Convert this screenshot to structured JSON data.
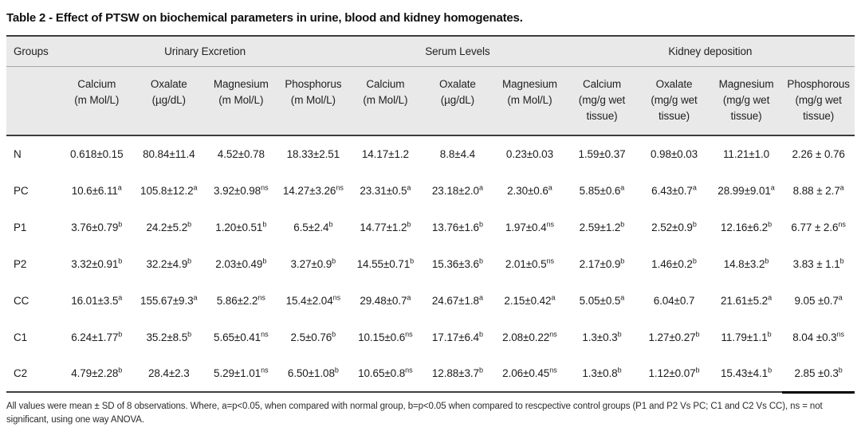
{
  "title": "Table 2 - Effect of PTSW on biochemical parameters in urine, blood and kidney homogenates.",
  "table": {
    "group_header": {
      "groups_label": "Groups",
      "spans": [
        {
          "label": "Urinary Excretion",
          "cols": 4
        },
        {
          "label": "Serum Levels",
          "cols": 3
        },
        {
          "label": "Kidney deposition",
          "cols": 4
        }
      ]
    },
    "columns": [
      {
        "name": "Calcium",
        "unit": "(m Mol/L)"
      },
      {
        "name": "Oxalate",
        "unit": "(µg/dL)"
      },
      {
        "name": "Magnesium",
        "unit": "(m Mol/L)"
      },
      {
        "name": "Phosphorus",
        "unit": "(m Mol/L)"
      },
      {
        "name": "Calcium",
        "unit": "(m Mol/L)"
      },
      {
        "name": "Oxalate",
        "unit": "(µg/dL)"
      },
      {
        "name": "Magnesium",
        "unit": "(m Mol/L)"
      },
      {
        "name": "Calcium",
        "unit": "(mg/g wet tissue)"
      },
      {
        "name": "Oxalate",
        "unit": "(mg/g wet tissue)"
      },
      {
        "name": "Magnesium",
        "unit": "(mg/g wet tissue)"
      },
      {
        "name": "Phosphorous",
        "unit": "(mg/g wet tissue)"
      }
    ],
    "rows": [
      {
        "group": "N",
        "values": [
          "0.618±0.15",
          "80.84±11.4",
          "4.52±0.78",
          "18.33±2.51",
          "14.17±1.2",
          "8.8±4.4",
          "0.23±0.03",
          "1.59±0.37",
          "0.98±0.03",
          "11.21±1.0",
          "2.26 ± 0.76"
        ]
      },
      {
        "group": "PC",
        "values": [
          "10.6±6.11^a",
          "105.8±12.2^a",
          "3.92±0.98^ns",
          "14.27±3.26^ns",
          "23.31±0.5^a",
          "23.18±2.0^a",
          "2.30±0.6^a",
          "5.85±0.6^a",
          "6.43±0.7^a",
          "28.99±9.01^a",
          "8.88 ± 2.7^a"
        ]
      },
      {
        "group": "P1",
        "values": [
          "3.76±0.79^b",
          "24.2±5.2^b",
          "1.20±0.51^b",
          "6.5±2.4^b",
          "14.77±1.2^b",
          "13.76±1.6^b",
          "1.97±0.4^ns",
          "2.59±1.2^b",
          "2.52±0.9^b",
          "12.16±6.2^b",
          "6.77 ± 2.6^ns"
        ]
      },
      {
        "group": "P2",
        "values": [
          "3.32±0.91^b",
          "32.2±4.9^b",
          "2.03±0.49^b",
          "3.27±0.9^b",
          "14.55±0.71^b",
          "15.36±3.6^b",
          "2.01±0.5^ns",
          "2.17±0.9^b",
          "1.46±0.2^b",
          "14.8±3.2^b",
          "3.83 ± 1.1^b"
        ]
      },
      {
        "group": "CC",
        "values": [
          "16.01±3.5^a",
          "155.67±9.3^a",
          "5.86±2.2^ns",
          "15.4±2.04^ns",
          "29.48±0.7^a",
          "24.67±1.8^a",
          "2.15±0.42^a",
          "5.05±0.5^a",
          "6.04±0.7",
          "21.61±5.2^a",
          "9.05 ±0.7^a"
        ]
      },
      {
        "group": "C1",
        "values": [
          "6.24±1.77^b",
          "35.2±8.5^b",
          "5.65±0.41^ns",
          "2.5±0.76^b",
          "10.15±0.6^ns",
          "17.17±6.4^b",
          "2.08±0.22^ns",
          "1.3±0.3^b",
          "1.27±0.27^b",
          "11.79±1.1^b",
          "8.04 ±0.3^ns"
        ]
      },
      {
        "group": "C2",
        "values": [
          "4.79±2.28^b",
          "28.4±2.3",
          "5.29±1.01^ns",
          "6.50±1.08^b",
          "10.65±0.8^ns",
          "12.88±3.7^b",
          "2.06±0.45^ns",
          "1.3±0.8^b",
          "1.12±0.07^b",
          "15.43±4.1^b",
          "2.85 ±0.3^b"
        ]
      }
    ]
  },
  "footnote": "All values were mean ± SD of 8 observations. Where, a=p<0.05, when compared with normal group, b=p<0.05 when compared to rescpective control groups (P1 and P2 Vs PC; C1 and C2 Vs CC), ns = not significant, using one way ANOVA."
}
